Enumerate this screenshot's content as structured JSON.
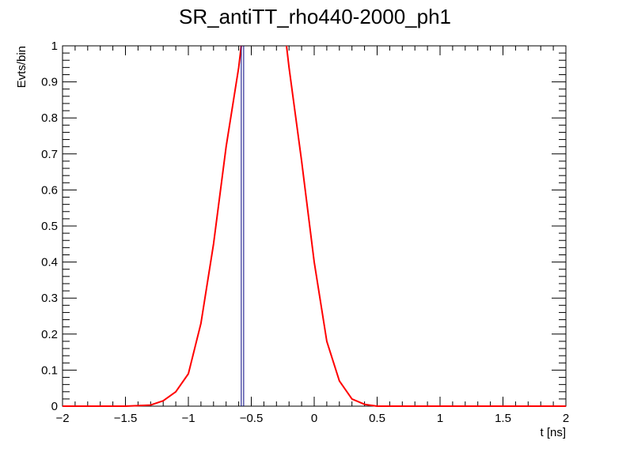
{
  "chart_data": {
    "type": "line",
    "title": "SR_antiTT_rho440-2000_ph1",
    "xlabel": "t [ns]",
    "ylabel": "Evts/bin",
    "xlim": [
      -2,
      2
    ],
    "ylim": [
      0,
      1
    ],
    "x_ticks": [
      "−2",
      "−1.5",
      "−1",
      "−0.5",
      "0",
      "0.5",
      "1",
      "1.5",
      "2"
    ],
    "y_ticks": [
      "0",
      "0.1",
      "0.2",
      "0.3",
      "0.4",
      "0.5",
      "0.6",
      "0.7",
      "0.8",
      "0.9",
      "1"
    ],
    "grid": false,
    "series": [
      {
        "color": "#ff0000",
        "style": "line",
        "x": [
          -2.0,
          -1.5,
          -1.3,
          -1.2,
          -1.1,
          -1.0,
          -0.9,
          -0.8,
          -0.7,
          -0.6,
          -0.58,
          -0.22,
          -0.2,
          -0.1,
          0.0,
          0.1,
          0.2,
          0.3,
          0.4,
          0.5,
          1.0,
          2.0
        ],
        "y": [
          0.0,
          0.0,
          0.003,
          0.015,
          0.04,
          0.09,
          0.23,
          0.45,
          0.72,
          0.94,
          1.0,
          1.0,
          0.94,
          0.68,
          0.4,
          0.18,
          0.07,
          0.02,
          0.005,
          0.0,
          0.0,
          0.0
        ]
      },
      {
        "color": "#000080",
        "style": "spike",
        "x": [
          -0.57
        ],
        "y": [
          1.0
        ]
      }
    ]
  }
}
